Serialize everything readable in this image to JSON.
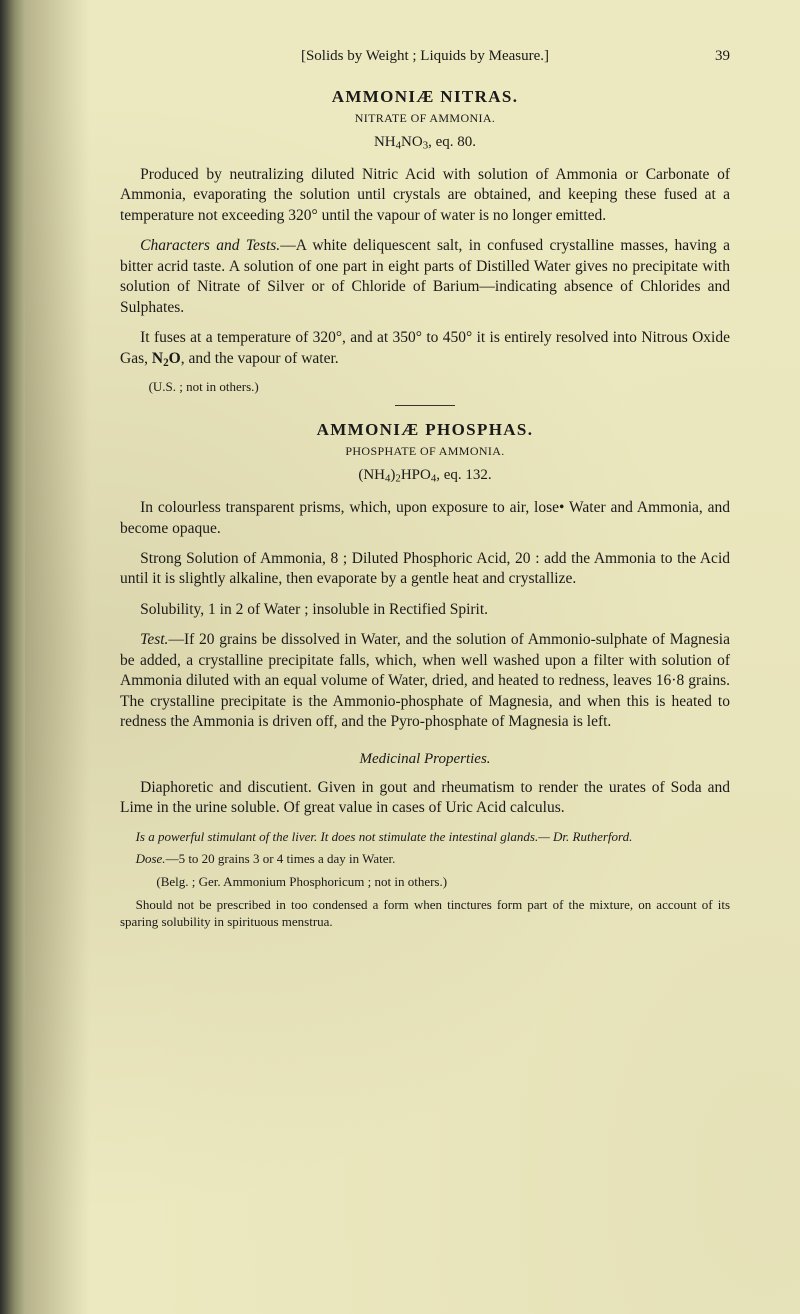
{
  "colors": {
    "page_bg": "#ece8bf",
    "outer_bg": "#3a3a42",
    "text": "#1a1a1a"
  },
  "runningHead": {
    "center": "[Solids by Weight ; Liquids by Measure.]",
    "pageNumber": "39"
  },
  "sec1": {
    "title": "AMMONIÆ NITRAS.",
    "sub": "NITRATE OF AMMONIA.",
    "formula_html": "NH<sub>4</sub>NO<sub>3</sub>, eq. 80.",
    "p1": "Produced by neutralizing diluted Nitric Acid with solution of Ammonia or Carbonate of Ammonia, evaporating the solution until crystals are obtained, and keeping these fused at a temperature not exceeding 320° until the vapour of water is no longer emitted.",
    "p2_lead": "Characters and Tests.",
    "p2_rest": "—A white deliquescent salt, in confused crystalline masses, having a bitter acrid taste. A solution of one part in eight parts of Distilled Water gives no precipitate with solution of Nitrate of Silver or of Chloride of Barium—indicating absence of Chlorides and Sulphates.",
    "p3_html": "It fuses at a temperature of 320°, and at 350° to 450° it is entirely resolved into Nitrous Oxide Gas, <b>N<sub>2</sub>O</b>, and the vapour of water.",
    "note": "(U.S. ; not in others.)"
  },
  "sec2": {
    "title": "AMMONIÆ PHOSPHAS.",
    "sub": "PHOSPHATE OF AMMONIA.",
    "formula_html": "(NH<sub>4</sub>)<sub>2</sub>HPO<sub>4</sub>, eq. 132.",
    "p1": "In colourless transparent prisms, which, upon exposure to air, lose• Water and Ammonia, and become opaque.",
    "p2": "Strong Solution of Ammonia, 8 ; Diluted Phosphoric Acid, 20 : add the Ammonia to the Acid until it is slightly alkaline, then evaporate by a gentle heat and crystallize.",
    "p3": "Solubility, 1 in 2 of Water ; insoluble in Rectified Spirit.",
    "p4_lead": "Test.",
    "p4_rest": "—If 20 grains be dissolved in Water, and the solution of Ammonio-sulphate of Magnesia be added, a crystalline precipitate falls, which, when well washed upon a filter with solution of Ammonia diluted with an equal volume of Water, dried, and heated to redness, leaves 16·8 grains. The crystalline precipitate is the Ammonio-phosphate of Magnesia, and when this is heated to redness the Ammonia is driven off, and the Pyro-phosphate of Magnesia is left.",
    "medHead": "Medicinal Properties.",
    "p5": "Diaphoretic and discutient. Given in gout and rheumatism to render the urates of Soda and Lime in the urine soluble. Of great value in cases of Uric Acid calculus.",
    "p6_html": "<i>Is a powerful stimulant of the liver. It does not stimulate the intestinal glands.— Dr. Rutherford.</i>",
    "p7_html": "<i>Dose.</i>—5 to 20 grains 3 or 4 times a day in Water.",
    "p8": "(Belg. ; Ger. Ammonium Phosphoricum ; not in others.)",
    "p9": "Should not be prescribed in too condensed a form when tinctures form part of the mixture, on account of its sparing solubility in spirituous menstrua."
  }
}
